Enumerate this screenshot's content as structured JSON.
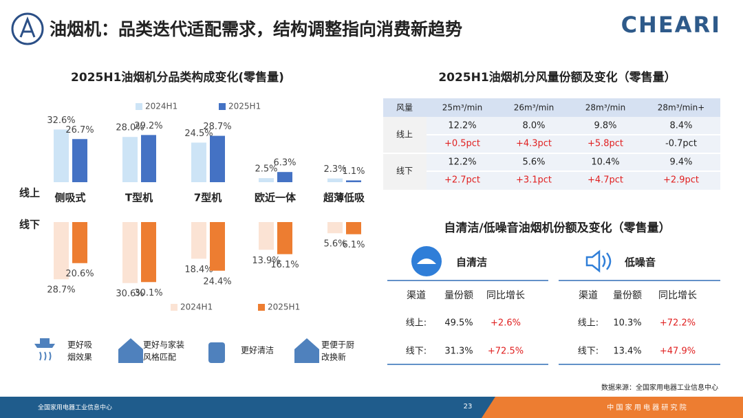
{
  "header": {
    "title": "油烟机：品类迭代适配需求，结构调整指向消费新趋势",
    "logo": "CHEARI"
  },
  "chart_data": [
    {
      "type": "bar",
      "title": "2025H1油烟机分品类构成变化(零售量)",
      "label": "线上",
      "direction": "up",
      "categories": [
        "侧吸式",
        "T型机",
        "7型机",
        "欧近一体",
        "超薄低吸"
      ],
      "series": [
        {
          "name": "2024H1",
          "color": "#cde4f6",
          "values": [
            32.6,
            28.0,
            24.5,
            2.5,
            2.3
          ],
          "value_labels": [
            "32.6%",
            "28.0%",
            "24.5%",
            "2.5%",
            "2.3%"
          ]
        },
        {
          "name": "2025H1",
          "color": "#4472c4",
          "values": [
            26.7,
            29.2,
            28.7,
            6.3,
            1.1
          ],
          "value_labels": [
            "26.7%",
            "29.2%",
            "28.7%",
            "6.3%",
            "1.1%"
          ]
        }
      ]
    },
    {
      "type": "bar",
      "label": "线下",
      "direction": "down",
      "series": [
        {
          "name": "2024H1",
          "color": "#fbe3d4",
          "values": [
            28.7,
            30.6,
            18.4,
            13.9,
            5.6
          ],
          "value_labels": [
            "28.7%",
            "30.6%",
            "18.4%",
            "13.9%",
            "5.6%"
          ]
        },
        {
          "name": "2025H1",
          "color": "#ed7d31",
          "values": [
            20.6,
            30.1,
            24.4,
            16.1,
            6.1
          ],
          "value_labels": [
            "20.6%",
            "30.1%",
            "24.4%",
            "16.1%",
            "6.1%"
          ]
        }
      ]
    }
  ],
  "features": [
    [
      "更好吸",
      "烟效果"
    ],
    [
      "更好与家装",
      "风格匹配"
    ],
    [
      "更好清洁"
    ],
    [
      "更便于厨",
      "改换新"
    ]
  ],
  "airflow_table": {
    "title": "2025H1油烟机分风量份额及变化（零售量）",
    "header": [
      "风量",
      "25m³/min",
      "26m³/min",
      "28m³/min",
      "28m³/min+"
    ],
    "rows": [
      {
        "channel": "线上",
        "share": [
          "12.2%",
          "8.0%",
          "9.8%",
          "8.4%"
        ],
        "change": [
          "+0.5pct",
          "+4.3pct",
          "+5.8pct",
          "-0.7pct"
        ]
      },
      {
        "channel": "线下",
        "share": [
          "12.2%",
          "5.6%",
          "10.4%",
          "9.4%"
        ],
        "change": [
          "+2.7pct",
          "+3.1pct",
          "+4.7pct",
          "+2.9pct"
        ]
      }
    ]
  },
  "feature_tables": {
    "title": "自清洁/低噪音油烟机份额及变化（零售量）",
    "tables": [
      {
        "name": "自清洁",
        "header": [
          "渠道",
          "量份额",
          "同比增长"
        ],
        "rows": [
          [
            "线上:",
            "49.5%",
            "+2.6%"
          ],
          [
            "线下:",
            "31.3%",
            "+72.5%"
          ]
        ]
      },
      {
        "name": "低噪音",
        "header": [
          "渠道",
          "量份额",
          "同比增长"
        ],
        "rows": [
          [
            "线上:",
            "10.3%",
            "+72.2%"
          ],
          [
            "线下:",
            "13.4%",
            "+47.9%"
          ]
        ]
      }
    ]
  },
  "source": "数据来源：全国家用电器工业信息中心",
  "footer": {
    "left": "全国家用电器工业信息中心",
    "page": "23",
    "right": "中 国 家 用 电 器 研 究 院"
  }
}
